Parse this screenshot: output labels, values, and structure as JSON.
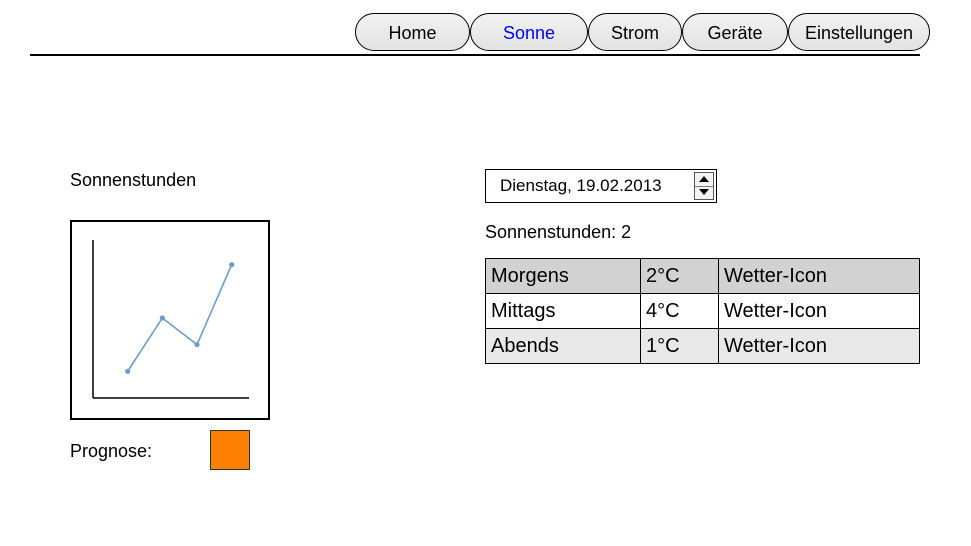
{
  "nav": {
    "tabs": [
      {
        "label": "Home"
      },
      {
        "label": "Sonne",
        "active": true
      },
      {
        "label": "Strom"
      },
      {
        "label": "Geräte"
      },
      {
        "label": "Einstellungen"
      }
    ]
  },
  "left": {
    "heading": "Sonnenstunden",
    "prognose_label": "Prognose:",
    "prognose_color": "#ff8000"
  },
  "chart_data": {
    "type": "line",
    "title": "",
    "x": [
      1,
      2,
      3,
      4
    ],
    "series": [
      {
        "values": [
          1,
          3,
          2,
          5
        ]
      }
    ],
    "xlim": [
      0,
      4.5
    ],
    "ylim": [
      0,
      6
    ],
    "line_color": "#6a9ccc",
    "grid": false
  },
  "right": {
    "date_value": "Dienstag, 19.02.2013",
    "sunhours_text": "Sonnenstunden: 2",
    "table": [
      {
        "period": "Morgens",
        "temp": "2°C",
        "icon": "Wetter-Icon"
      },
      {
        "period": "Mittags",
        "temp": "4°C",
        "icon": "Wetter-Icon"
      },
      {
        "period": "Abends",
        "temp": "1°C",
        "icon": "Wetter-Icon"
      }
    ]
  }
}
